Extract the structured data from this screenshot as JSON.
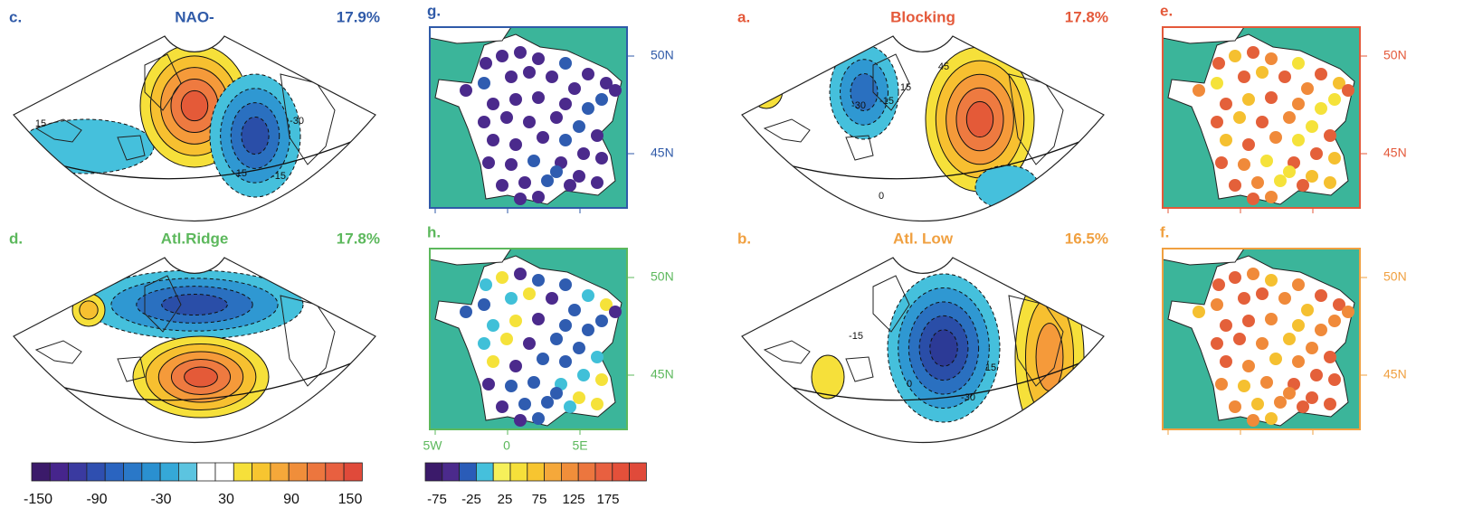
{
  "fan_panels": [
    {
      "letter": "c.",
      "title": "NAO-",
      "percent": "17.9%",
      "contour_labels": [
        "15",
        "-15",
        "-30",
        "-15"
      ]
    },
    {
      "letter": "a.",
      "title": "Blocking",
      "percent": "17.8%",
      "contour_labels": [
        "-30",
        "-15",
        "15",
        "45",
        "0"
      ]
    },
    {
      "letter": "d.",
      "title": "Atl.Ridge",
      "percent": "17.8%"
    },
    {
      "letter": "b.",
      "title": "Atl. Low",
      "percent": "16.5%",
      "contour_labels": [
        "-15",
        "15",
        "-30",
        "0"
      ]
    }
  ],
  "station_maps": [
    {
      "letter": "g.",
      "lat_labels": [
        "50N",
        "45N"
      ]
    },
    {
      "letter": "e.",
      "lat_labels": [
        "50N",
        "45N"
      ]
    },
    {
      "letter": "h.",
      "lat_labels": [
        "50N",
        "45N"
      ]
    },
    {
      "letter": "f.",
      "lat_labels": [
        "50N",
        "45N"
      ]
    }
  ],
  "lon_labels": [
    "5W",
    "0",
    "5E"
  ],
  "colorbar_left": {
    "labels": [
      "-150",
      "-90",
      "-30",
      "30",
      "90",
      "150"
    ]
  },
  "colorbar_right": {
    "labels": [
      "-75",
      "-25",
      "25",
      "75",
      "125",
      "175"
    ]
  }
}
